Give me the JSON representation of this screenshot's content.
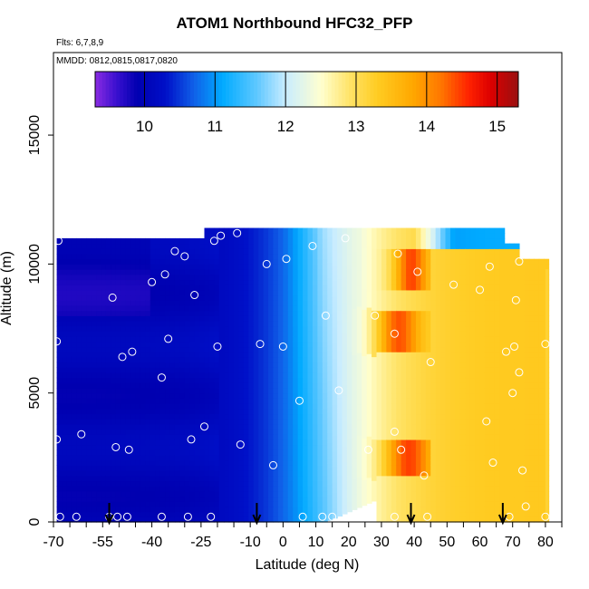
{
  "chart_data": {
    "type": "heatmap",
    "title": "ATOM1 Northbound HFC32_PFP",
    "flights_label": "Flts: 6,7,8,9",
    "dates_label": "MMDD: 0812,0815,0817,0820",
    "xlabel": "Latitude (deg N)",
    "ylabel": "Altitude (m)",
    "xlim": [
      -70,
      85
    ],
    "ylim": [
      0,
      18200
    ],
    "x_ticks": [
      -70,
      -55,
      -40,
      -25,
      -10,
      0,
      10,
      20,
      30,
      40,
      50,
      60,
      70,
      80
    ],
    "x_minor_ticks": [
      -65,
      -60,
      -50,
      -45,
      -35,
      -30,
      -20,
      -15,
      -5,
      5,
      15,
      25,
      35,
      45,
      55,
      65,
      75,
      85
    ],
    "y_ticks": [
      0,
      5000,
      10000,
      15000
    ],
    "colorbar": {
      "range": [
        9.3,
        15.3
      ],
      "ticks": [
        10,
        11,
        12,
        13,
        14,
        15
      ],
      "stops": [
        {
          "v": 9.3,
          "c": "#8a2be2"
        },
        {
          "v": 9.6,
          "c": "#3a10d0"
        },
        {
          "v": 9.9,
          "c": "#0000b0"
        },
        {
          "v": 10.3,
          "c": "#0010c8"
        },
        {
          "v": 10.7,
          "c": "#1060e8"
        },
        {
          "v": 11.1,
          "c": "#00aaff"
        },
        {
          "v": 11.6,
          "c": "#60c8ff"
        },
        {
          "v": 12.0,
          "c": "#c8ecff"
        },
        {
          "v": 12.5,
          "c": "#ffffd0"
        },
        {
          "v": 12.9,
          "c": "#ffe46a"
        },
        {
          "v": 13.3,
          "c": "#ffcc22"
        },
        {
          "v": 13.8,
          "c": "#ffa800"
        },
        {
          "v": 14.2,
          "c": "#ff7700"
        },
        {
          "v": 14.6,
          "c": "#ff2200"
        },
        {
          "v": 14.9,
          "c": "#dd0000"
        },
        {
          "v": 15.3,
          "c": "#991010"
        }
      ]
    },
    "arrows_lat": [
      -53,
      -8,
      39,
      67
    ],
    "samples": [
      [
        -68.5,
        10900
      ],
      [
        -69,
        7000
      ],
      [
        -69,
        3200
      ],
      [
        -68,
        200
      ],
      [
        -61.5,
        3400
      ],
      [
        -63,
        200
      ],
      [
        -52,
        8700
      ],
      [
        -49,
        6400
      ],
      [
        -46,
        6600
      ],
      [
        -47,
        2800
      ],
      [
        -51,
        2900
      ],
      [
        -53,
        200
      ],
      [
        -50.5,
        200
      ],
      [
        -47.5,
        200
      ],
      [
        -40,
        9300
      ],
      [
        -36,
        9600
      ],
      [
        -35,
        7100
      ],
      [
        -37,
        5600
      ],
      [
        -33,
        10500
      ],
      [
        -30,
        10300
      ],
      [
        -27,
        8800
      ],
      [
        -24,
        3700
      ],
      [
        -28,
        3200
      ],
      [
        -37,
        200
      ],
      [
        -29,
        200
      ],
      [
        -22,
        200
      ],
      [
        -21,
        10900
      ],
      [
        -19,
        11100
      ],
      [
        -14,
        11200
      ],
      [
        -20,
        6800
      ],
      [
        -13,
        3000
      ],
      [
        -7,
        6900
      ],
      [
        -5,
        10000
      ],
      [
        1,
        10200
      ],
      [
        0,
        6800
      ],
      [
        -3,
        2200
      ],
      [
        6,
        200
      ],
      [
        9,
        10700
      ],
      [
        12,
        200
      ],
      [
        13,
        8000
      ],
      [
        5,
        4700
      ],
      [
        19,
        11000
      ],
      [
        17,
        5100
      ],
      [
        15,
        200
      ],
      [
        24,
        200
      ],
      [
        26,
        2800
      ],
      [
        28,
        8000
      ],
      [
        34,
        7300
      ],
      [
        35,
        10400
      ],
      [
        41,
        9700
      ],
      [
        45,
        6200
      ],
      [
        36,
        2800
      ],
      [
        34,
        3500
      ],
      [
        43,
        1800
      ],
      [
        34,
        200
      ],
      [
        44,
        200
      ],
      [
        52,
        9200
      ],
      [
        60,
        9000
      ],
      [
        63,
        9900
      ],
      [
        68,
        6600
      ],
      [
        70,
        5000
      ],
      [
        71,
        8600
      ],
      [
        70.5,
        6800
      ],
      [
        72,
        5800
      ],
      [
        69,
        200
      ],
      [
        62,
        3900
      ],
      [
        64,
        2300
      ],
      [
        73,
        2000
      ],
      [
        71.5,
        11100
      ],
      [
        72,
        10100
      ],
      [
        74,
        600
      ],
      [
        80,
        6900
      ],
      [
        80,
        200
      ]
    ]
  }
}
